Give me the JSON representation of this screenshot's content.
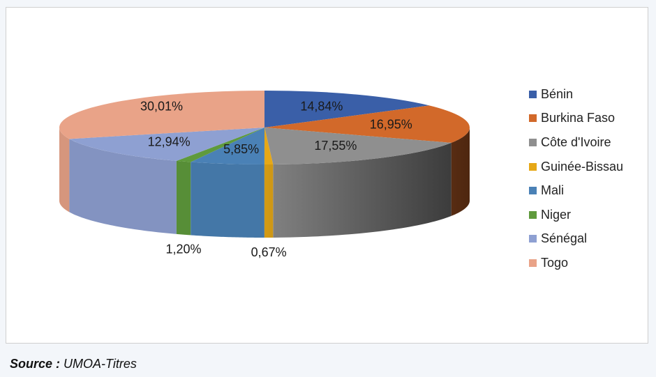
{
  "chart_data": {
    "type": "pie",
    "style": "3d",
    "slices": [
      {
        "name": "Bénin",
        "value": 14.84,
        "label": "14,84%",
        "color": "#3a5fa8"
      },
      {
        "name": "Burkina Faso",
        "value": 16.95,
        "label": "16,95%",
        "color": "#d2692a"
      },
      {
        "name": "Côte d'Ivoire",
        "value": 17.55,
        "label": "17,55%",
        "color": "#8f8f8f"
      },
      {
        "name": "Guinée-Bissau",
        "value": 0.67,
        "label": "0,67%",
        "color": "#e6a817"
      },
      {
        "name": "Mali",
        "value": 5.85,
        "label": "5,85%",
        "color": "#4a81b6"
      },
      {
        "name": "Niger",
        "value": 1.2,
        "label": "1,20%",
        "color": "#5f9a3c"
      },
      {
        "name": "Sénégal",
        "value": 12.94,
        "label": "12,94%",
        "color": "#8ea0d2"
      },
      {
        "name": "Togo",
        "value": 30.01,
        "label": "30,01%",
        "color": "#e9a388"
      }
    ],
    "legend_position": "right"
  },
  "source": {
    "prefix": "Source :",
    "text": "UMOA-Titres"
  }
}
